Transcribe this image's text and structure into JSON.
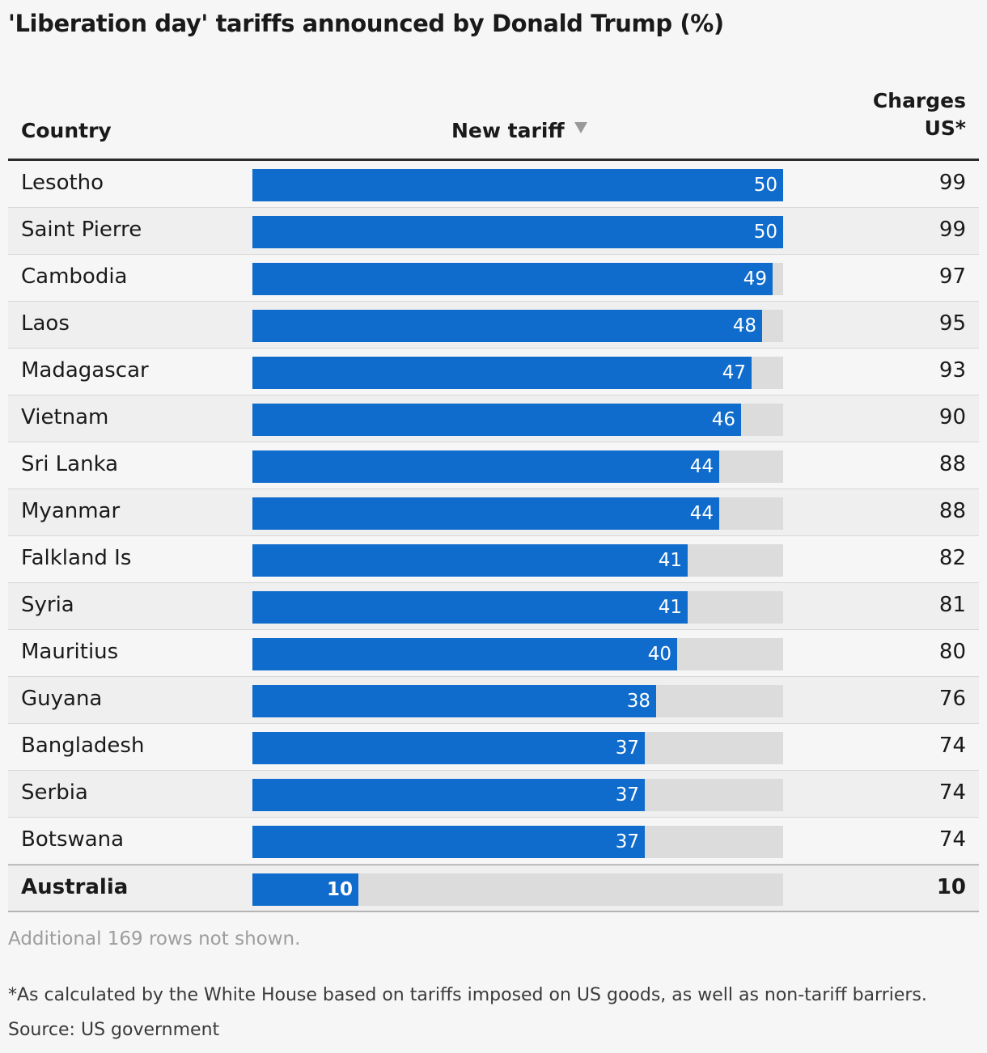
{
  "chart_data": {
    "type": "table",
    "title": "'Liberation day' tariffs announced by Donald Trump (%)",
    "columns": [
      "Country",
      "New tariff",
      "Charges US*"
    ],
    "max_value": 50,
    "rows": [
      {
        "country": "Lesotho",
        "tariff": 50,
        "charges": 99
      },
      {
        "country": "Saint Pierre",
        "tariff": 50,
        "charges": 99
      },
      {
        "country": "Cambodia",
        "tariff": 49,
        "charges": 97
      },
      {
        "country": "Laos",
        "tariff": 48,
        "charges": 95
      },
      {
        "country": "Madagascar",
        "tariff": 47,
        "charges": 93
      },
      {
        "country": "Vietnam",
        "tariff": 46,
        "charges": 90
      },
      {
        "country": "Sri Lanka",
        "tariff": 44,
        "charges": 88
      },
      {
        "country": "Myanmar",
        "tariff": 44,
        "charges": 88
      },
      {
        "country": "Falkland Is",
        "tariff": 41,
        "charges": 82
      },
      {
        "country": "Syria",
        "tariff": 41,
        "charges": 81
      },
      {
        "country": "Mauritius",
        "tariff": 40,
        "charges": 80
      },
      {
        "country": "Guyana",
        "tariff": 38,
        "charges": 76
      },
      {
        "country": "Bangladesh",
        "tariff": 37,
        "charges": 74
      },
      {
        "country": "Serbia",
        "tariff": 37,
        "charges": 74
      },
      {
        "country": "Botswana",
        "tariff": 37,
        "charges": 74
      },
      {
        "country": "Australia",
        "tariff": 10,
        "charges": 10,
        "highlight": true
      }
    ],
    "more_rows_text": "Additional 169 rows not shown.",
    "footnote": "*As calculated by the White House based on tariffs imposed on US goods, as well as non-tariff barriers.",
    "source": "Source: US government",
    "bar_color": "#106ccc",
    "track_color": "#dcdcdc"
  },
  "header": {
    "country": "Country",
    "tariff": "New tariff",
    "charges_line1": "Charges",
    "charges_line2": "US*"
  }
}
